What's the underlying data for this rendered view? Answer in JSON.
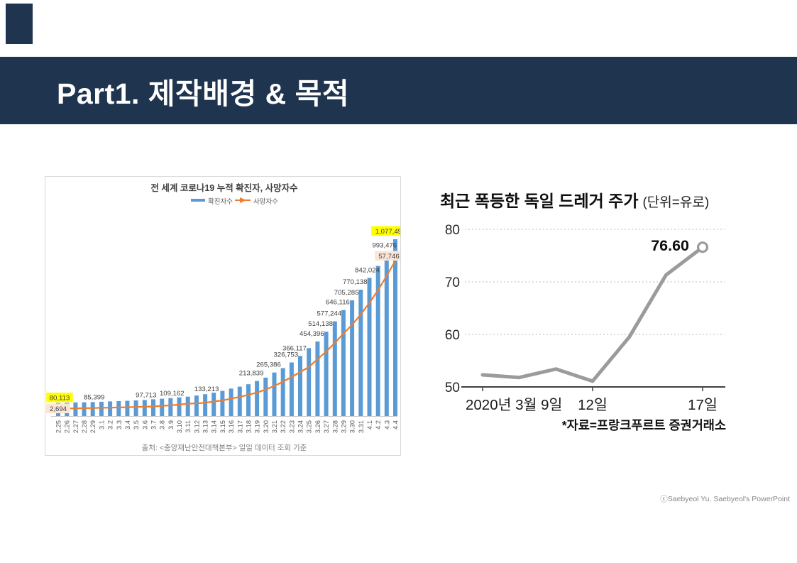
{
  "header": {
    "title": "Part1. 제작배경 & 목적",
    "bg_color": "#1F344F",
    "text_color": "#FFFFFF"
  },
  "footer": {
    "credit": "ⓒSaebyeol Yu. Saebyeol's PowerPoint"
  },
  "chart_data": [
    {
      "id": "covid-cumulative",
      "type": "bar",
      "title": "전 세계 코로나19 누적 확진자, 사망자수",
      "source_note": "출처: <중앙재난안전대책본부> 일일 데이터 조회 기준",
      "legend": [
        {
          "label": "확진자수",
          "color": "#5B9BD5",
          "marker": "bar"
        },
        {
          "label": "사망자수",
          "color": "#ED7D31",
          "marker": "line-arrow"
        }
      ],
      "categories": [
        "2.25",
        "2.26",
        "2.27",
        "2.28",
        "2.29",
        "3.1",
        "3.2",
        "3.3",
        "3.4",
        "3.5",
        "3.6",
        "3.7",
        "3.8",
        "3.9",
        "3.10",
        "3.11",
        "3.12",
        "3.13",
        "3.14",
        "3.15",
        "3.16",
        "3.17",
        "3.18",
        "3.19",
        "3.20",
        "3.21",
        "3.22",
        "3.23",
        "3.24",
        "3.25",
        "3.26",
        "3.27",
        "3.28",
        "3.29",
        "3.30",
        "3.31",
        "4.1",
        "4.2",
        "4.3",
        "4.4"
      ],
      "series": [
        {
          "name": "확진자수",
          "type": "bar",
          "color": "#5B9BD5",
          "axis": "primary",
          "values": [
            80113,
            80980,
            82594,
            83892,
            85399,
            87137,
            88948,
            90869,
            93091,
            95324,
            97713,
            101927,
            105592,
            109162,
            113672,
            118319,
            125260,
            133213,
            142534,
            153517,
            167515,
            179112,
            194029,
            213839,
            234073,
            265386,
            292142,
            326753,
            366117,
            414179,
            454396,
            514138,
            577244,
            646116,
            705285,
            770138,
            842024,
            915000,
            993476,
            1077497
          ],
          "data_labels": [
            {
              "i": 0,
              "text": "80,113",
              "highlight": "#FFFF00"
            },
            {
              "i": 4,
              "text": "85,399"
            },
            {
              "i": 10,
              "text": "97,713"
            },
            {
              "i": 13,
              "text": "109,162"
            },
            {
              "i": 17,
              "text": "133,213"
            },
            {
              "i": 23,
              "text": "213,839"
            },
            {
              "i": 25,
              "text": "265,386"
            },
            {
              "i": 27,
              "text": "326,753"
            },
            {
              "i": 28,
              "text": "366,117"
            },
            {
              "i": 30,
              "text": "454,396"
            },
            {
              "i": 31,
              "text": "514,138"
            },
            {
              "i": 32,
              "text": "577,244"
            },
            {
              "i": 33,
              "text": "646,116"
            },
            {
              "i": 34,
              "text": "705,285"
            },
            {
              "i": 35,
              "text": "770,138"
            },
            {
              "i": 36,
              "text": "842,024"
            },
            {
              "i": 38,
              "text": "993,476"
            },
            {
              "i": 39,
              "text": "1,077,497",
              "highlight": "#FFFF00"
            }
          ]
        },
        {
          "name": "사망자수",
          "type": "line",
          "color": "#ED7D31",
          "axis": "secondary",
          "values": [
            2694,
            2800,
            2858,
            2923,
            2977,
            3050,
            3117,
            3202,
            3285,
            3380,
            3460,
            3558,
            3802,
            3988,
            4262,
            4615,
            4720,
            4947,
            5404,
            5819,
            6440,
            7126,
            7905,
            8733,
            9840,
            11184,
            12784,
            14510,
            16362,
            18227,
            21181,
            23970,
            27198,
            30652,
            33925,
            37785,
            42107,
            46809,
            52114,
            57746
          ],
          "data_labels": [
            {
              "i": 0,
              "text": "2,694",
              "highlight": "#FBE5D6"
            },
            {
              "i": 39,
              "text": "57,746",
              "highlight": "#FBE5D6"
            }
          ]
        }
      ],
      "axes": {
        "primary_max": 1077497,
        "secondary_max": 66000,
        "gridlines": false
      }
    },
    {
      "id": "draeger-stock",
      "type": "line",
      "title": "최근 폭등한 독일 드레거 주가",
      "title_unit": "(단위=유로)",
      "source_note": "*자료=프랑크푸르트 증권거래소",
      "x": [
        "3.9",
        "3.10",
        "3.11",
        "3.12",
        "3.13",
        "3.16",
        "3.17"
      ],
      "x_ticks": [
        {
          "label": "2020년 3월 9일",
          "index": 0
        },
        {
          "label": "12일",
          "index": 3
        },
        {
          "label": "17일",
          "index": 6
        }
      ],
      "values": [
        52.3,
        51.8,
        53.4,
        51.1,
        59.5,
        71.3,
        76.6
      ],
      "end_point_label": "76.60",
      "ylim": [
        50,
        80
      ],
      "yticks": [
        50,
        60,
        70,
        80
      ],
      "line_color": "#9B9B9B",
      "grid_color": "#BDBDBD",
      "end_marker": "open-circle",
      "legend": "none"
    }
  ]
}
